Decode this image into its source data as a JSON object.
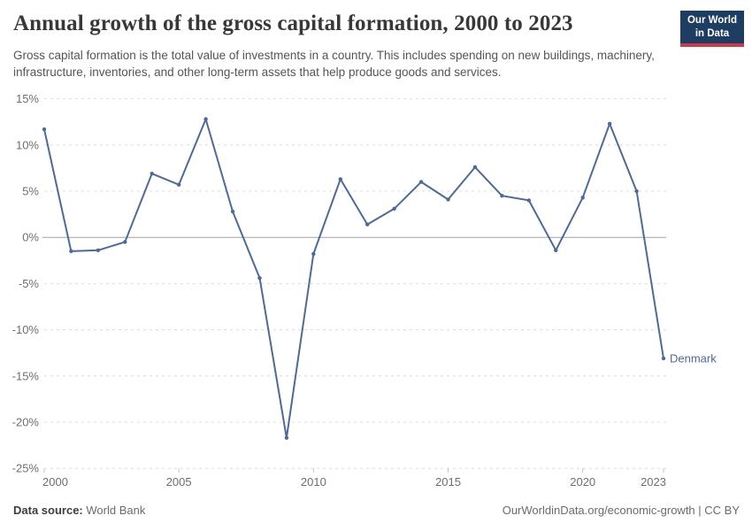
{
  "header": {
    "title": "Annual growth of the gross capital formation, 2000 to 2023",
    "subtitle": "Gross capital formation is the total value of investments in a country. This includes spending on new buildings, machinery, infrastructure, inventories, and other long-term assets that help produce goods and services.",
    "logo": {
      "line1": "Our World",
      "line2": "in Data"
    }
  },
  "chart_data": {
    "type": "line",
    "title": "Annual growth of the gross capital formation, 2000 to 2023",
    "x": [
      2000,
      2001,
      2002,
      2003,
      2004,
      2005,
      2006,
      2007,
      2008,
      2009,
      2010,
      2011,
      2012,
      2013,
      2014,
      2015,
      2016,
      2017,
      2018,
      2019,
      2020,
      2021,
      2022,
      2023
    ],
    "series": [
      {
        "name": "Denmark",
        "color": "#4c6a9c",
        "values": [
          11.7,
          -1.5,
          -1.4,
          -0.5,
          6.9,
          5.7,
          12.8,
          2.8,
          -4.4,
          -21.7,
          -1.8,
          6.3,
          1.4,
          3.1,
          6.0,
          4.1,
          7.6,
          4.5,
          4.0,
          -1.4,
          4.3,
          12.3,
          5.0,
          -13.1
        ]
      }
    ],
    "ylim": [
      -25,
      15
    ],
    "yticks": [
      15,
      10,
      5,
      0,
      -5,
      -10,
      -15,
      -20,
      -25
    ],
    "ytick_labels": [
      "15%",
      "10%",
      "5%",
      "0%",
      "-5%",
      "-10%",
      "-15%",
      "-20%",
      "-25%"
    ],
    "xticks": [
      2000,
      2005,
      2010,
      2015,
      2020,
      2023
    ],
    "xtick_labels": [
      "2000",
      "2005",
      "2010",
      "2015",
      "2020",
      "2023"
    ],
    "grid": "horizontal-dashed",
    "zero_line": true,
    "legend": "end-of-line label",
    "end_label": "Denmark"
  },
  "footer": {
    "source_label": "Data source:",
    "source_value": "World Bank",
    "credit": "OurWorldinData.org/economic-growth | CC BY"
  },
  "colors": {
    "line": "#4c6a9c",
    "grid": "#dcdcdc",
    "zero_line": "#a1a1a1",
    "tick_text": "#6e6e6e",
    "title_text": "#383838",
    "logo_bg": "#1d3d63",
    "logo_bar": "#cf3b44"
  }
}
